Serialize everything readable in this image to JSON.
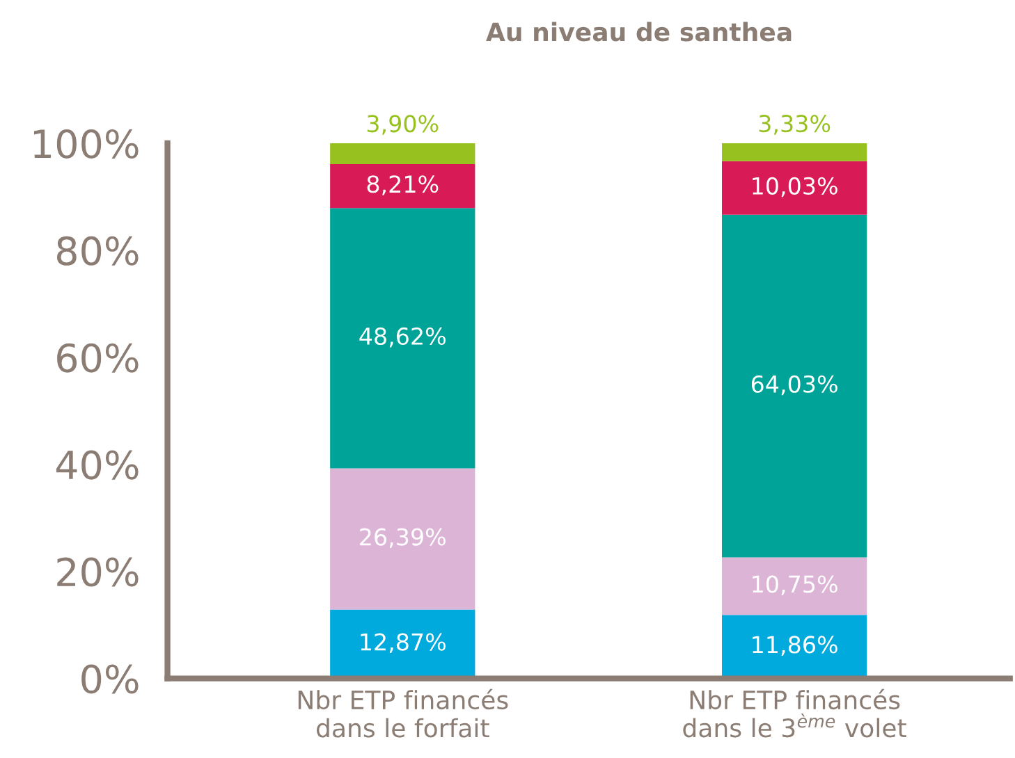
{
  "chart_data": {
    "type": "bar",
    "title": "Au niveau de santhea",
    "stacked": true,
    "categories": [
      "Nbr ETP financés\ndans le forfait",
      "Nbr ETP financés\ndans le 3$^{ème}$ volet"
    ],
    "series": [
      {
        "color": "#00aadd",
        "values": [
          12.87,
          11.86
        ],
        "value_labels": [
          "12,87%",
          "11,86%"
        ]
      },
      {
        "color": "#dcb4d6",
        "values": [
          26.39,
          10.75
        ],
        "value_labels": [
          "26,39%",
          "10,75%"
        ]
      },
      {
        "color": "#00a398",
        "values": [
          48.62,
          64.03
        ],
        "value_labels": [
          "48,62%",
          "64,03%"
        ]
      },
      {
        "color": "#d81b57",
        "values": [
          8.21,
          10.03
        ],
        "value_labels": [
          "8,21%",
          "10,03%"
        ]
      },
      {
        "color": "#97c11f",
        "values": [
          3.9,
          3.33
        ],
        "value_labels": [
          "3,90%",
          "3,33%"
        ]
      }
    ],
    "ylim": [
      0,
      100
    ],
    "yticks": [
      {
        "value": 0,
        "label": "0%"
      },
      {
        "value": 20,
        "label": "20%"
      },
      {
        "value": 40,
        "label": "40%"
      },
      {
        "value": 60,
        "label": "60%"
      },
      {
        "value": 80,
        "label": "80%"
      },
      {
        "value": 100,
        "label": "100%"
      }
    ],
    "grid": false,
    "legend": false
  }
}
